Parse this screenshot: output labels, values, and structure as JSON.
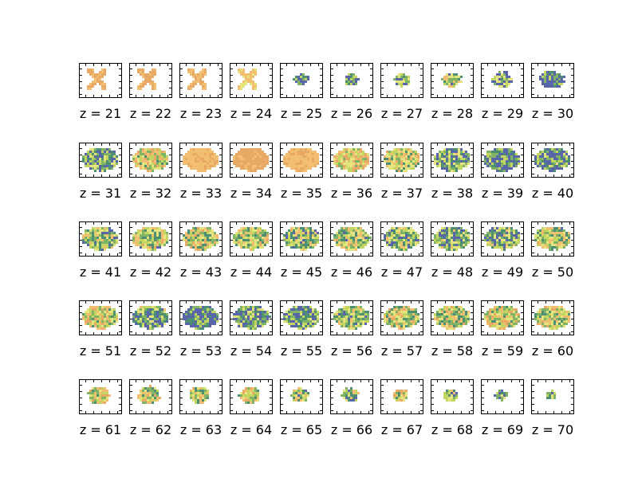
{
  "figure": {
    "background": "#ffffff",
    "grid": {
      "rows": 5,
      "cols": 10
    },
    "label_prefix": "z = ",
    "colormap": [
      "#3b4a99",
      "#2f7a5a",
      "#6aa64a",
      "#b9cf45",
      "#e0e06a",
      "#f0b458",
      "#e39a4a"
    ],
    "slices": [
      {
        "z": 21,
        "label": "z = 21",
        "level": 0.88
      },
      {
        "z": 22,
        "label": "z = 22",
        "level": 0.88
      },
      {
        "z": 23,
        "label": "z = 23",
        "level": 0.86
      },
      {
        "z": 24,
        "label": "z = 24",
        "level": 0.72
      },
      {
        "z": 25,
        "label": "z = 25",
        "level": 0.22
      },
      {
        "z": 26,
        "label": "z = 26",
        "level": 0.2
      },
      {
        "z": 27,
        "label": "z = 27",
        "level": 0.35
      },
      {
        "z": 28,
        "label": "z = 28",
        "level": 0.48
      },
      {
        "z": 29,
        "label": "z = 29",
        "level": 0.33
      },
      {
        "z": 30,
        "label": "z = 30",
        "level": 0.12
      },
      {
        "z": 31,
        "label": "z = 31",
        "level": 0.33
      },
      {
        "z": 32,
        "label": "z = 32",
        "level": 0.62
      },
      {
        "z": 33,
        "label": "z = 33",
        "level": 0.82
      },
      {
        "z": 34,
        "label": "z = 34",
        "level": 0.92
      },
      {
        "z": 35,
        "label": "z = 35",
        "level": 0.83
      },
      {
        "z": 36,
        "label": "z = 36",
        "level": 0.72
      },
      {
        "z": 37,
        "label": "z = 37",
        "level": 0.55
      },
      {
        "z": 38,
        "label": "z = 38",
        "level": 0.35
      },
      {
        "z": 39,
        "label": "z = 39",
        "level": 0.2
      },
      {
        "z": 40,
        "label": "z = 40",
        "level": 0.25
      },
      {
        "z": 41,
        "label": "z = 41",
        "level": 0.45
      },
      {
        "z": 42,
        "label": "z = 42",
        "level": 0.5
      },
      {
        "z": 43,
        "label": "z = 43",
        "level": 0.55
      },
      {
        "z": 44,
        "label": "z = 44",
        "level": 0.52
      },
      {
        "z": 45,
        "label": "z = 45",
        "level": 0.45
      },
      {
        "z": 46,
        "label": "z = 46",
        "level": 0.5
      },
      {
        "z": 47,
        "label": "z = 47",
        "level": 0.42
      },
      {
        "z": 48,
        "label": "z = 48",
        "level": 0.35
      },
      {
        "z": 49,
        "label": "z = 49",
        "level": 0.4
      },
      {
        "z": 50,
        "label": "z = 50",
        "level": 0.5
      },
      {
        "z": 51,
        "label": "z = 51",
        "level": 0.58
      },
      {
        "z": 52,
        "label": "z = 52",
        "level": 0.35
      },
      {
        "z": 53,
        "label": "z = 53",
        "level": 0.2
      },
      {
        "z": 54,
        "label": "z = 54",
        "level": 0.3
      },
      {
        "z": 55,
        "label": "z = 55",
        "level": 0.3
      },
      {
        "z": 56,
        "label": "z = 56",
        "level": 0.45
      },
      {
        "z": 57,
        "label": "z = 57",
        "level": 0.55
      },
      {
        "z": 58,
        "label": "z = 58",
        "level": 0.55
      },
      {
        "z": 59,
        "label": "z = 59",
        "level": 0.6
      },
      {
        "z": 60,
        "label": "z = 60",
        "level": 0.55
      },
      {
        "z": 61,
        "label": "z = 61",
        "level": 0.6
      },
      {
        "z": 62,
        "label": "z = 62",
        "level": 0.55
      },
      {
        "z": 63,
        "label": "z = 63",
        "level": 0.5
      },
      {
        "z": 64,
        "label": "z = 64",
        "level": 0.55
      },
      {
        "z": 65,
        "label": "z = 65",
        "level": 0.5
      },
      {
        "z": 66,
        "label": "z = 66",
        "level": 0.45
      },
      {
        "z": 67,
        "label": "z = 67",
        "level": 0.6
      },
      {
        "z": 68,
        "label": "z = 68",
        "level": 0.45
      },
      {
        "z": 69,
        "label": "z = 69",
        "level": 0.3
      },
      {
        "z": 70,
        "label": "z = 70",
        "level": 0.25
      }
    ]
  }
}
